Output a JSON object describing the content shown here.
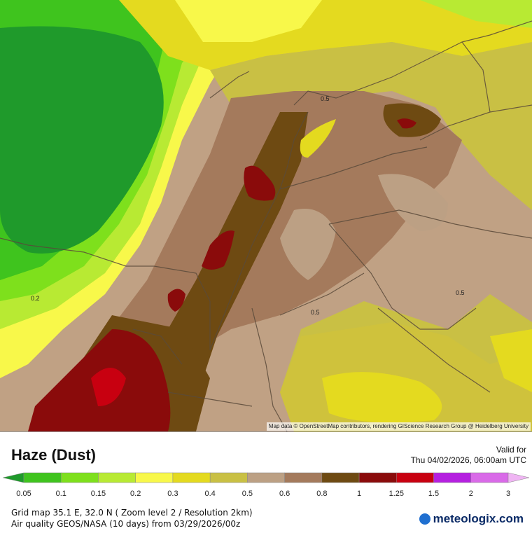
{
  "map": {
    "attribution": "Map data © OpenStreetMap contributors, rendering GIScience Research Group @ Heidelberg University",
    "contour_labels": [
      "0.5",
      "0.2",
      "0.5",
      "0.5"
    ]
  },
  "footer": {
    "title": "Haze (Dust)",
    "valid_label": "Valid for",
    "valid_time": "Thu 04/02/2026, 06:00am UTC",
    "grid_info": "Grid map 35.1 E, 32.0 N ( Zoom level 2 / Resolution 2km)",
    "model_info": "Air quality GEOS/NASA (10 days)  from  03/29/2026/00z",
    "logo_text": "meteologix.com"
  },
  "legend": {
    "values": [
      "0.05",
      "0.1",
      "0.15",
      "0.2",
      "0.3",
      "0.4",
      "0.5",
      "0.6",
      "0.8",
      "1",
      "1.25",
      "1.5",
      "2",
      "3"
    ],
    "colors": [
      "#1f9a2b",
      "#3fc41e",
      "#7ee01c",
      "#b8ea33",
      "#f8f84a",
      "#e4da1f",
      "#c9c044",
      "#bca084",
      "#a47a5c",
      "#6e4a12",
      "#8a0b0b",
      "#c80010",
      "#b520e0",
      "#d96ae8",
      "#efb4f3"
    ]
  }
}
